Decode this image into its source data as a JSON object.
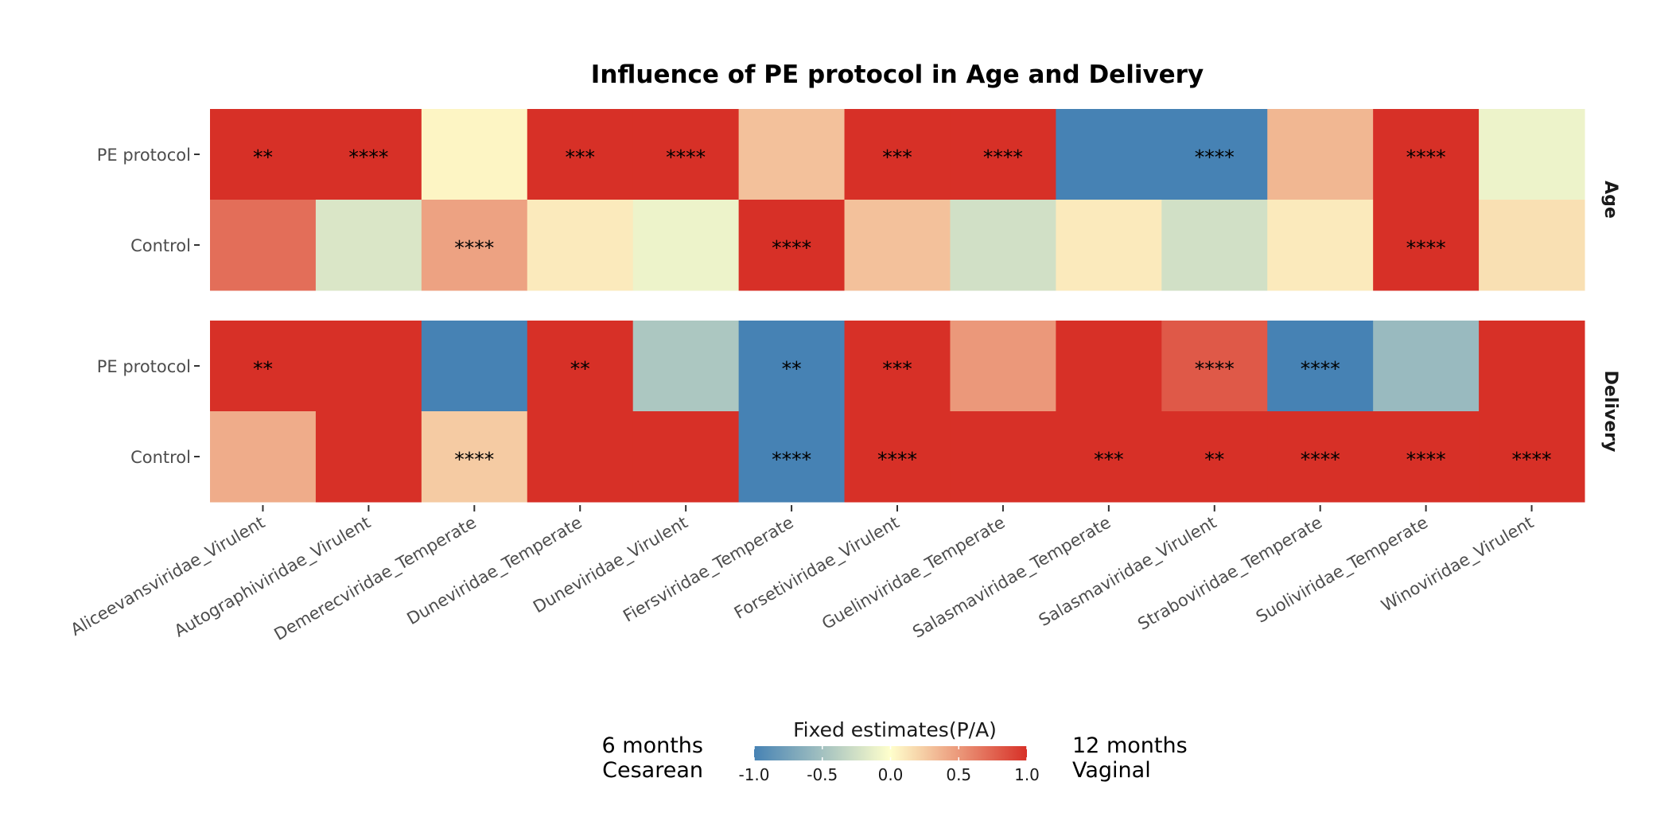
{
  "chart_data": {
    "type": "heatmap",
    "title": "Influence of PE protocol in Age and Delivery",
    "categories": [
      "Aliceevansviridae_Virulent",
      "Autographiviridae_Virulent",
      "Demerecviridae_Temperate",
      "Duneviridae_Temperate",
      "Duneviridae_Virulent",
      "Fiersviridae_Temperate",
      "Forsetiviridae_Virulent",
      "Guelinviridae_Temperate",
      "Salasmaviridae_Temperate",
      "Salasmaviridae_Virulent",
      "Straboviridae_Temperate",
      "Suoliviridae_Temperate",
      "Winoviridae_Virulent"
    ],
    "rows": [
      "PE protocol",
      "Control"
    ],
    "facets": [
      {
        "label": "Age",
        "values": [
          [
            1.0,
            1.0,
            0.05,
            1.0,
            1.0,
            0.3,
            1.0,
            1.0,
            -1.0,
            -1.0,
            0.35,
            1.0,
            -0.1
          ],
          [
            0.7,
            -0.2,
            0.45,
            0.1,
            -0.1,
            1.0,
            0.3,
            -0.25,
            0.1,
            -0.25,
            0.1,
            1.0,
            0.15
          ]
        ],
        "significance": [
          [
            "**",
            "****",
            "",
            "***",
            "****",
            "",
            "***",
            "****",
            "",
            "****",
            "",
            "****",
            ""
          ],
          [
            "",
            "",
            "****",
            "",
            "",
            "****",
            "",
            "",
            "",
            "",
            "",
            "****",
            ""
          ]
        ]
      },
      {
        "label": "Delivery",
        "values": [
          [
            1.0,
            1.0,
            -1.0,
            1.0,
            -0.45,
            -1.0,
            1.0,
            0.5,
            1.0,
            0.8,
            -1.0,
            -0.55,
            1.0
          ],
          [
            0.4,
            1.0,
            0.25,
            1.0,
            1.0,
            -1.0,
            1.0,
            1.0,
            1.0,
            1.0,
            1.0,
            1.0,
            1.0
          ]
        ],
        "significance": [
          [
            "**",
            "",
            "",
            "**",
            "",
            "**",
            "***",
            "",
            "",
            "****",
            "****",
            "",
            ""
          ],
          [
            "",
            "",
            "****",
            "",
            "",
            "****",
            "****",
            "",
            "***",
            "**",
            "****",
            "****",
            "****"
          ]
        ]
      }
    ],
    "legend": {
      "title": "Fixed estimates(P/A)",
      "ticks": [
        -1.0,
        -0.5,
        0.0,
        0.5,
        1.0
      ],
      "tick_labels": [
        "-1.0",
        "-0.5",
        "0.0",
        "0.5",
        "1.0"
      ],
      "range": [
        -1,
        1
      ],
      "placement": "bottom",
      "left_label_lines": [
        "6 months",
        "Cesarean"
      ],
      "right_label_lines": [
        "12 months",
        "Vaginal"
      ]
    },
    "colors": {
      "negative": "#4682b4",
      "neutral": "#ffffcc",
      "positive": "#d73027"
    }
  }
}
